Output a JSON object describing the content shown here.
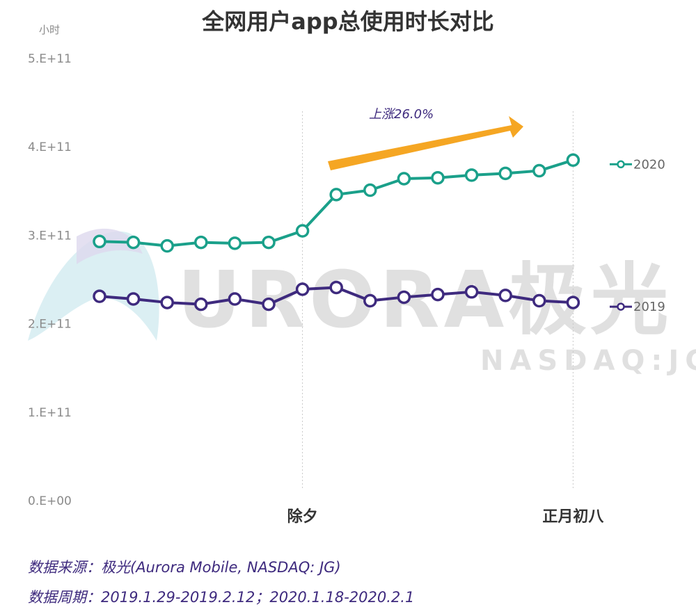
{
  "chart_data": {
    "type": "line",
    "title": "全网用户app总使用时长对比",
    "unit_label": "小时",
    "ylim": [
      0,
      500000000000
    ],
    "y_ticks": [
      {
        "value": 0,
        "label": "0.E+00"
      },
      {
        "value": 100000000000,
        "label": "1.E+11"
      },
      {
        "value": 200000000000,
        "label": "2.E+11"
      },
      {
        "value": 300000000000,
        "label": "3.E+11"
      },
      {
        "value": 400000000000,
        "label": "4.E+11"
      },
      {
        "value": 500000000000,
        "label": "5.E+11"
      }
    ],
    "x_count": 15,
    "x_labels": [
      {
        "index": 6,
        "label": "除夕"
      },
      {
        "index": 14,
        "label": "正月初八"
      }
    ],
    "grid": false,
    "legend_position": "right",
    "series": [
      {
        "name": "2020",
        "color": "#1aa08a",
        "values": [
          293000000000,
          292000000000,
          288000000000,
          292000000000,
          291000000000,
          292000000000,
          305000000000,
          346000000000,
          351000000000,
          364000000000,
          365000000000,
          368000000000,
          370000000000,
          373000000000,
          385000000000
        ]
      },
      {
        "name": "2019",
        "color": "#3e2a7e",
        "values": [
          231000000000,
          228000000000,
          224000000000,
          222000000000,
          228000000000,
          222000000000,
          239000000000,
          241000000000,
          226000000000,
          230000000000,
          233000000000,
          236000000000,
          232000000000,
          226000000000,
          224000000000
        ]
      }
    ],
    "annotation": {
      "text": "上涨26.0%",
      "arrow_color": "#f5a623"
    }
  },
  "watermark": {
    "brand": "URORA极光",
    "ticker": "NASDAQ:JG"
  },
  "footer": {
    "source": "数据来源：极光(Aurora Mobile, NASDAQ: JG)",
    "period": "数据周期：2019.1.29-2019.2.12；2020.1.18-2020.2.1"
  }
}
